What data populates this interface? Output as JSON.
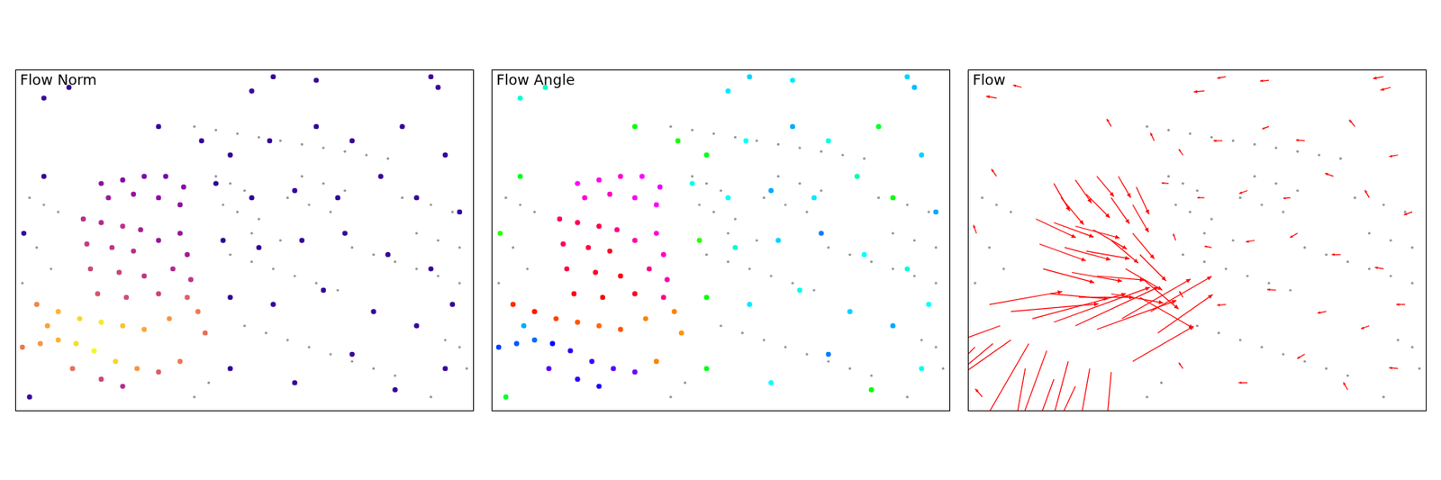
{
  "chart_data": {
    "type": "scatter",
    "xlim": [
      0,
      640
    ],
    "ylim": [
      0,
      480
    ],
    "tick_labels": false,
    "norm_range": [
      0,
      60
    ],
    "angle_range": [
      0,
      360
    ],
    "panels": [
      {
        "type": "norm",
        "title": "Flow Norm"
      },
      {
        "type": "angle",
        "title": "Flow Angle"
      },
      {
        "type": "quiver",
        "title": "Flow",
        "color": "#ff0000"
      }
    ],
    "background": {
      "color": "#969696",
      "x": [
        250,
        280,
        310,
        340,
        370,
        400,
        430,
        460,
        490,
        520,
        280,
        300,
        320,
        290,
        310,
        340,
        380,
        410,
        440,
        400,
        430,
        460,
        300,
        330,
        360,
        390,
        420,
        450,
        330,
        370,
        470,
        500,
        530,
        560,
        590,
        620,
        320,
        350,
        380,
        410,
        440,
        470,
        500,
        530,
        560,
        590,
        620,
        540,
        580,
        610,
        20,
        40,
        60,
        30,
        50,
        10,
        600,
        620,
        630,
        580,
        250,
        270
      ],
      "y": [
        400,
        395,
        390,
        385,
        380,
        375,
        370,
        365,
        360,
        355,
        330,
        320,
        310,
        290,
        280,
        270,
        300,
        290,
        280,
        330,
        320,
        310,
        220,
        210,
        200,
        190,
        180,
        170,
        250,
        240,
        230,
        220,
        210,
        200,
        190,
        180,
        120,
        110,
        100,
        90,
        80,
        70,
        60,
        50,
        250,
        240,
        230,
        300,
        290,
        280,
        300,
        290,
        280,
        230,
        200,
        180,
        100,
        90,
        60,
        20,
        20,
        40
      ]
    },
    "events": {
      "x": [
        120,
        150,
        180,
        210,
        235,
        130,
        165,
        200,
        230,
        95,
        120,
        150,
        175,
        100,
        135,
        165,
        200,
        230,
        240,
        105,
        145,
        180,
        220,
        245,
        115,
        155,
        200,
        240,
        30,
        60,
        90,
        120,
        150,
        180,
        215,
        255,
        265,
        10,
        35,
        60,
        85,
        110,
        140,
        170,
        200,
        230,
        120,
        150,
        80,
        45,
        40,
        75,
        330,
        360,
        420,
        580,
        590,
        200,
        260,
        300,
        355,
        420,
        470,
        540,
        600,
        280,
        330,
        390,
        450,
        510,
        560,
        620,
        290,
        340,
        400,
        460,
        520,
        580,
        300,
        360,
        430,
        500,
        560,
        610,
        20,
        300,
        390,
        470,
        530,
        600,
        12,
        40
      ],
      "y": [
        320,
        325,
        330,
        330,
        315,
        300,
        305,
        300,
        290,
        270,
        265,
        260,
        255,
        235,
        230,
        225,
        240,
        250,
        220,
        200,
        195,
        190,
        200,
        185,
        165,
        160,
        165,
        160,
        150,
        140,
        130,
        125,
        120,
        115,
        130,
        140,
        110,
        90,
        95,
        100,
        95,
        85,
        70,
        60,
        55,
        70,
        45,
        35,
        60,
        120,
        440,
        455,
        450,
        470,
        465,
        470,
        455,
        400,
        380,
        360,
        380,
        400,
        380,
        400,
        360,
        320,
        300,
        310,
        300,
        330,
        300,
        280,
        240,
        230,
        240,
        250,
        220,
        200,
        160,
        150,
        170,
        140,
        120,
        150,
        20,
        60,
        40,
        80,
        30,
        60,
        250,
        330
      ],
      "norm": [
        18,
        16,
        15,
        14,
        17,
        20,
        19,
        18,
        18,
        25,
        24,
        26,
        22,
        28,
        27,
        25,
        20,
        19,
        21,
        30,
        29,
        27,
        24,
        26,
        33,
        31,
        30,
        35,
        42,
        50,
        55,
        58,
        52,
        48,
        45,
        40,
        38,
        40,
        45,
        50,
        56,
        60,
        55,
        45,
        35,
        40,
        30,
        25,
        38,
        47,
        6,
        5,
        6,
        5,
        5,
        6,
        6,
        5,
        5,
        4,
        5,
        4,
        5,
        5,
        5,
        4,
        4,
        5,
        4,
        5,
        5,
        5,
        4,
        4,
        5,
        5,
        5,
        5,
        4,
        5,
        5,
        5,
        5,
        5,
        6,
        4,
        5,
        5,
        5,
        5,
        5,
        5
      ],
      "angle": [
        300,
        305,
        310,
        300,
        295,
        310,
        315,
        305,
        300,
        335,
        340,
        345,
        330,
        340,
        345,
        350,
        320,
        310,
        315,
        345,
        350,
        355,
        330,
        320,
        355,
        0,
        350,
        330,
        10,
        5,
        15,
        20,
        25,
        20,
        30,
        30,
        35,
        225,
        220,
        215,
        240,
        250,
        255,
        260,
        265,
        30,
        250,
        245,
        260,
        200,
        170,
        165,
        185,
        190,
        185,
        190,
        195,
        120,
        115,
        125,
        180,
        200,
        175,
        130,
        190,
        175,
        180,
        200,
        185,
        160,
        120,
        200,
        110,
        170,
        190,
        210,
        180,
        170,
        120,
        185,
        175,
        190,
        200,
        180,
        130,
        125,
        180,
        210,
        120,
        175,
        110,
        125
      ]
    }
  }
}
